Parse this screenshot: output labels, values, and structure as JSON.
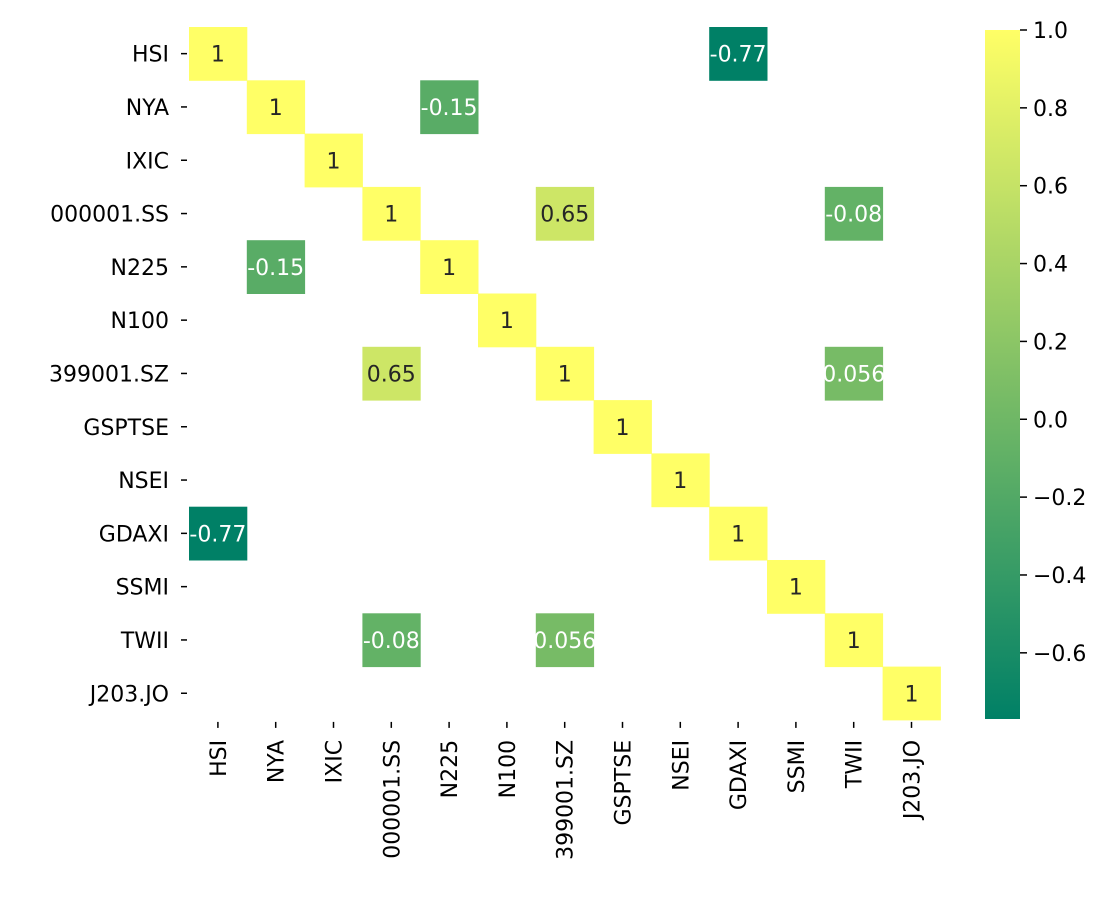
{
  "chart_data": {
    "type": "heatmap",
    "title": "",
    "xlabel": "",
    "ylabel": "",
    "rows": [
      "HSI",
      "NYA",
      "IXIC",
      "000001.SS",
      "N225",
      "N100",
      "399001.SZ",
      "GSPTSE",
      "NSEI",
      "GDAXI",
      "SSMI",
      "TWII",
      "J203.JO"
    ],
    "columns": [
      "HSI",
      "NYA",
      "IXIC",
      "000001.SS",
      "N225",
      "N100",
      "399001.SZ",
      "GSPTSE",
      "NSEI",
      "GDAXI",
      "SSMI",
      "TWII",
      "J203.JO"
    ],
    "cells": [
      {
        "row": 0,
        "col": 0,
        "value": 1,
        "label": "1"
      },
      {
        "row": 0,
        "col": 9,
        "value": -0.77,
        "label": "-0.77"
      },
      {
        "row": 1,
        "col": 1,
        "value": 1,
        "label": "1"
      },
      {
        "row": 1,
        "col": 4,
        "value": -0.15,
        "label": "-0.15"
      },
      {
        "row": 2,
        "col": 2,
        "value": 1,
        "label": "1"
      },
      {
        "row": 3,
        "col": 3,
        "value": 1,
        "label": "1"
      },
      {
        "row": 3,
        "col": 6,
        "value": 0.65,
        "label": "0.65"
      },
      {
        "row": 3,
        "col": 11,
        "value": -0.08,
        "label": "-0.08"
      },
      {
        "row": 4,
        "col": 1,
        "value": -0.15,
        "label": "-0.15"
      },
      {
        "row": 4,
        "col": 4,
        "value": 1,
        "label": "1"
      },
      {
        "row": 5,
        "col": 5,
        "value": 1,
        "label": "1"
      },
      {
        "row": 6,
        "col": 3,
        "value": 0.65,
        "label": "0.65"
      },
      {
        "row": 6,
        "col": 6,
        "value": 1,
        "label": "1"
      },
      {
        "row": 6,
        "col": 11,
        "value": 0.056,
        "label": "0.056"
      },
      {
        "row": 7,
        "col": 7,
        "value": 1,
        "label": "1"
      },
      {
        "row": 8,
        "col": 8,
        "value": 1,
        "label": "1"
      },
      {
        "row": 9,
        "col": 0,
        "value": -0.77,
        "label": "-0.77"
      },
      {
        "row": 9,
        "col": 9,
        "value": 1,
        "label": "1"
      },
      {
        "row": 10,
        "col": 10,
        "value": 1,
        "label": "1"
      },
      {
        "row": 11,
        "col": 3,
        "value": -0.08,
        "label": "-0.08"
      },
      {
        "row": 11,
        "col": 6,
        "value": 0.056,
        "label": "0.056"
      },
      {
        "row": 11,
        "col": 11,
        "value": 1,
        "label": "1"
      },
      {
        "row": 12,
        "col": 12,
        "value": 1,
        "label": "1"
      }
    ],
    "colorbar": {
      "vmin": -0.77,
      "vmax": 1.0,
      "ticks": [
        1.0,
        0.8,
        0.6,
        0.4,
        0.2,
        0.0,
        -0.2,
        -0.4,
        -0.6
      ],
      "tick_labels": [
        "1.0",
        "0.8",
        "0.6",
        "0.4",
        "0.2",
        "0.0",
        "−0.2",
        "−0.4",
        "−0.6"
      ],
      "colormap": "summer",
      "color_low": "#008066",
      "color_high": "#ffff66"
    },
    "grid": false,
    "legend": "colorbar-right"
  }
}
